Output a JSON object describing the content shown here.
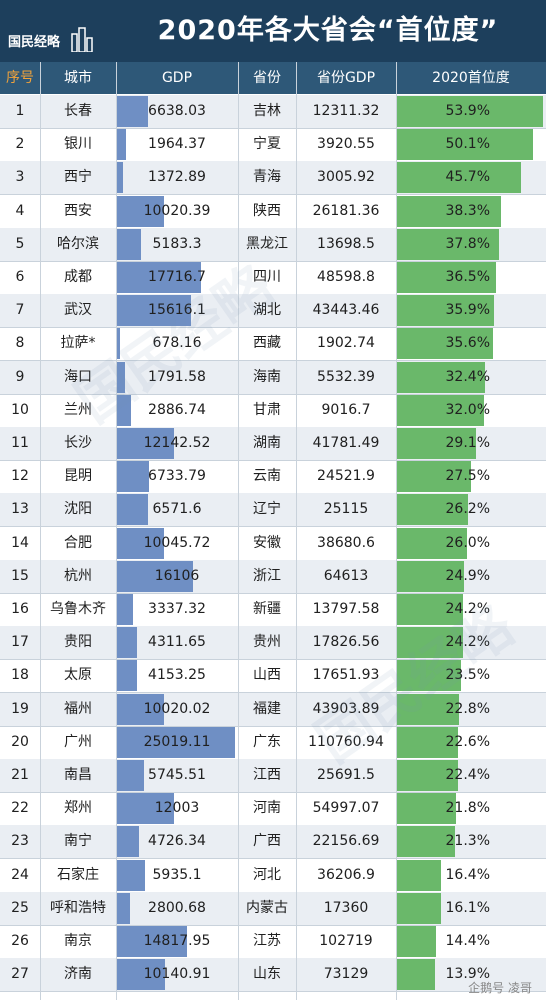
{
  "header": {
    "title": "2020年各大省会“首位度”",
    "logo_text": "国民经略"
  },
  "columns": [
    "序号",
    "城市",
    "GDP",
    "省份",
    "省份GDP",
    "2020首位度"
  ],
  "footer": "企鹅号 凌哥",
  "watermark": "国民经略",
  "colors": {
    "header_bg": "#1d3f5c",
    "colhead_bg": "#2e5878",
    "gdp_bar": "#6f8fc4",
    "rate_bar": "#6ab86a",
    "stripe": "#eaeef3"
  },
  "chart_data": {
    "type": "table",
    "title": "2020年各大省会“首位度”",
    "columns": [
      "序号",
      "城市",
      "GDP",
      "省份",
      "省份GDP",
      "2020首位度"
    ],
    "gdp_max": 25019.11,
    "rate_max": 53.9,
    "rows": [
      {
        "rank": "1",
        "city": "长春",
        "gdp": 6638.03,
        "gdp_label": "6638.03",
        "province": "吉林",
        "prov_gdp": "12311.32",
        "rate": 53.9,
        "rate_label": "53.9%"
      },
      {
        "rank": "2",
        "city": "银川",
        "gdp": 1964.37,
        "gdp_label": "1964.37",
        "province": "宁夏",
        "prov_gdp": "3920.55",
        "rate": 50.1,
        "rate_label": "50.1%"
      },
      {
        "rank": "3",
        "city": "西宁",
        "gdp": 1372.89,
        "gdp_label": "1372.89",
        "province": "青海",
        "prov_gdp": "3005.92",
        "rate": 45.7,
        "rate_label": "45.7%"
      },
      {
        "rank": "4",
        "city": "西安",
        "gdp": 10020.39,
        "gdp_label": "10020.39",
        "province": "陕西",
        "prov_gdp": "26181.36",
        "rate": 38.3,
        "rate_label": "38.3%"
      },
      {
        "rank": "5",
        "city": "哈尔滨",
        "gdp": 5183.3,
        "gdp_label": "5183.3",
        "province": "黑龙江",
        "prov_gdp": "13698.5",
        "rate": 37.8,
        "rate_label": "37.8%"
      },
      {
        "rank": "6",
        "city": "成都",
        "gdp": 17716.7,
        "gdp_label": "17716.7",
        "province": "四川",
        "prov_gdp": "48598.8",
        "rate": 36.5,
        "rate_label": "36.5%"
      },
      {
        "rank": "7",
        "city": "武汉",
        "gdp": 15616.1,
        "gdp_label": "15616.1",
        "province": "湖北",
        "prov_gdp": "43443.46",
        "rate": 35.9,
        "rate_label": "35.9%"
      },
      {
        "rank": "8",
        "city": "拉萨*",
        "gdp": 678.16,
        "gdp_label": "678.16",
        "province": "西藏",
        "prov_gdp": "1902.74",
        "rate": 35.6,
        "rate_label": "35.6%"
      },
      {
        "rank": "9",
        "city": "海口",
        "gdp": 1791.58,
        "gdp_label": "1791.58",
        "province": "海南",
        "prov_gdp": "5532.39",
        "rate": 32.4,
        "rate_label": "32.4%"
      },
      {
        "rank": "10",
        "city": "兰州",
        "gdp": 2886.74,
        "gdp_label": "2886.74",
        "province": "甘肃",
        "prov_gdp": "9016.7",
        "rate": 32.0,
        "rate_label": "32.0%"
      },
      {
        "rank": "11",
        "city": "长沙",
        "gdp": 12142.52,
        "gdp_label": "12142.52",
        "province": "湖南",
        "prov_gdp": "41781.49",
        "rate": 29.1,
        "rate_label": "29.1%"
      },
      {
        "rank": "12",
        "city": "昆明",
        "gdp": 6733.79,
        "gdp_label": "6733.79",
        "province": "云南",
        "prov_gdp": "24521.9",
        "rate": 27.5,
        "rate_label": "27.5%"
      },
      {
        "rank": "13",
        "city": "沈阳",
        "gdp": 6571.6,
        "gdp_label": "6571.6",
        "province": "辽宁",
        "prov_gdp": "25115",
        "rate": 26.2,
        "rate_label": "26.2%"
      },
      {
        "rank": "14",
        "city": "合肥",
        "gdp": 10045.72,
        "gdp_label": "10045.72",
        "province": "安徽",
        "prov_gdp": "38680.6",
        "rate": 26.0,
        "rate_label": "26.0%"
      },
      {
        "rank": "15",
        "city": "杭州",
        "gdp": 16106,
        "gdp_label": "16106",
        "province": "浙江",
        "prov_gdp": "64613",
        "rate": 24.9,
        "rate_label": "24.9%"
      },
      {
        "rank": "16",
        "city": "乌鲁木齐",
        "gdp": 3337.32,
        "gdp_label": "3337.32",
        "province": "新疆",
        "prov_gdp": "13797.58",
        "rate": 24.2,
        "rate_label": "24.2%"
      },
      {
        "rank": "17",
        "city": "贵阳",
        "gdp": 4311.65,
        "gdp_label": "4311.65",
        "province": "贵州",
        "prov_gdp": "17826.56",
        "rate": 24.2,
        "rate_label": "24.2%"
      },
      {
        "rank": "18",
        "city": "太原",
        "gdp": 4153.25,
        "gdp_label": "4153.25",
        "province": "山西",
        "prov_gdp": "17651.93",
        "rate": 23.5,
        "rate_label": "23.5%"
      },
      {
        "rank": "19",
        "city": "福州",
        "gdp": 10020.02,
        "gdp_label": "10020.02",
        "province": "福建",
        "prov_gdp": "43903.89",
        "rate": 22.8,
        "rate_label": "22.8%"
      },
      {
        "rank": "20",
        "city": "广州",
        "gdp": 25019.11,
        "gdp_label": "25019.11",
        "province": "广东",
        "prov_gdp": "110760.94",
        "rate": 22.6,
        "rate_label": "22.6%"
      },
      {
        "rank": "21",
        "city": "南昌",
        "gdp": 5745.51,
        "gdp_label": "5745.51",
        "province": "江西",
        "prov_gdp": "25691.5",
        "rate": 22.4,
        "rate_label": "22.4%"
      },
      {
        "rank": "22",
        "city": "郑州",
        "gdp": 12003,
        "gdp_label": "12003",
        "province": "河南",
        "prov_gdp": "54997.07",
        "rate": 21.8,
        "rate_label": "21.8%"
      },
      {
        "rank": "23",
        "city": "南宁",
        "gdp": 4726.34,
        "gdp_label": "4726.34",
        "province": "广西",
        "prov_gdp": "22156.69",
        "rate": 21.3,
        "rate_label": "21.3%"
      },
      {
        "rank": "24",
        "city": "石家庄",
        "gdp": 5935.1,
        "gdp_label": "5935.1",
        "province": "河北",
        "prov_gdp": "36206.9",
        "rate": 16.4,
        "rate_label": "16.4%"
      },
      {
        "rank": "25",
        "city": "呼和浩特",
        "gdp": 2800.68,
        "gdp_label": "2800.68",
        "province": "内蒙古",
        "prov_gdp": "17360",
        "rate": 16.1,
        "rate_label": "16.1%"
      },
      {
        "rank": "26",
        "city": "南京",
        "gdp": 14817.95,
        "gdp_label": "14817.95",
        "province": "江苏",
        "prov_gdp": "102719",
        "rate": 14.4,
        "rate_label": "14.4%"
      },
      {
        "rank": "27",
        "city": "济南",
        "gdp": 10140.91,
        "gdp_label": "10140.91",
        "province": "山东",
        "prov_gdp": "73129",
        "rate": 13.9,
        "rate_label": "13.9%"
      }
    ]
  }
}
